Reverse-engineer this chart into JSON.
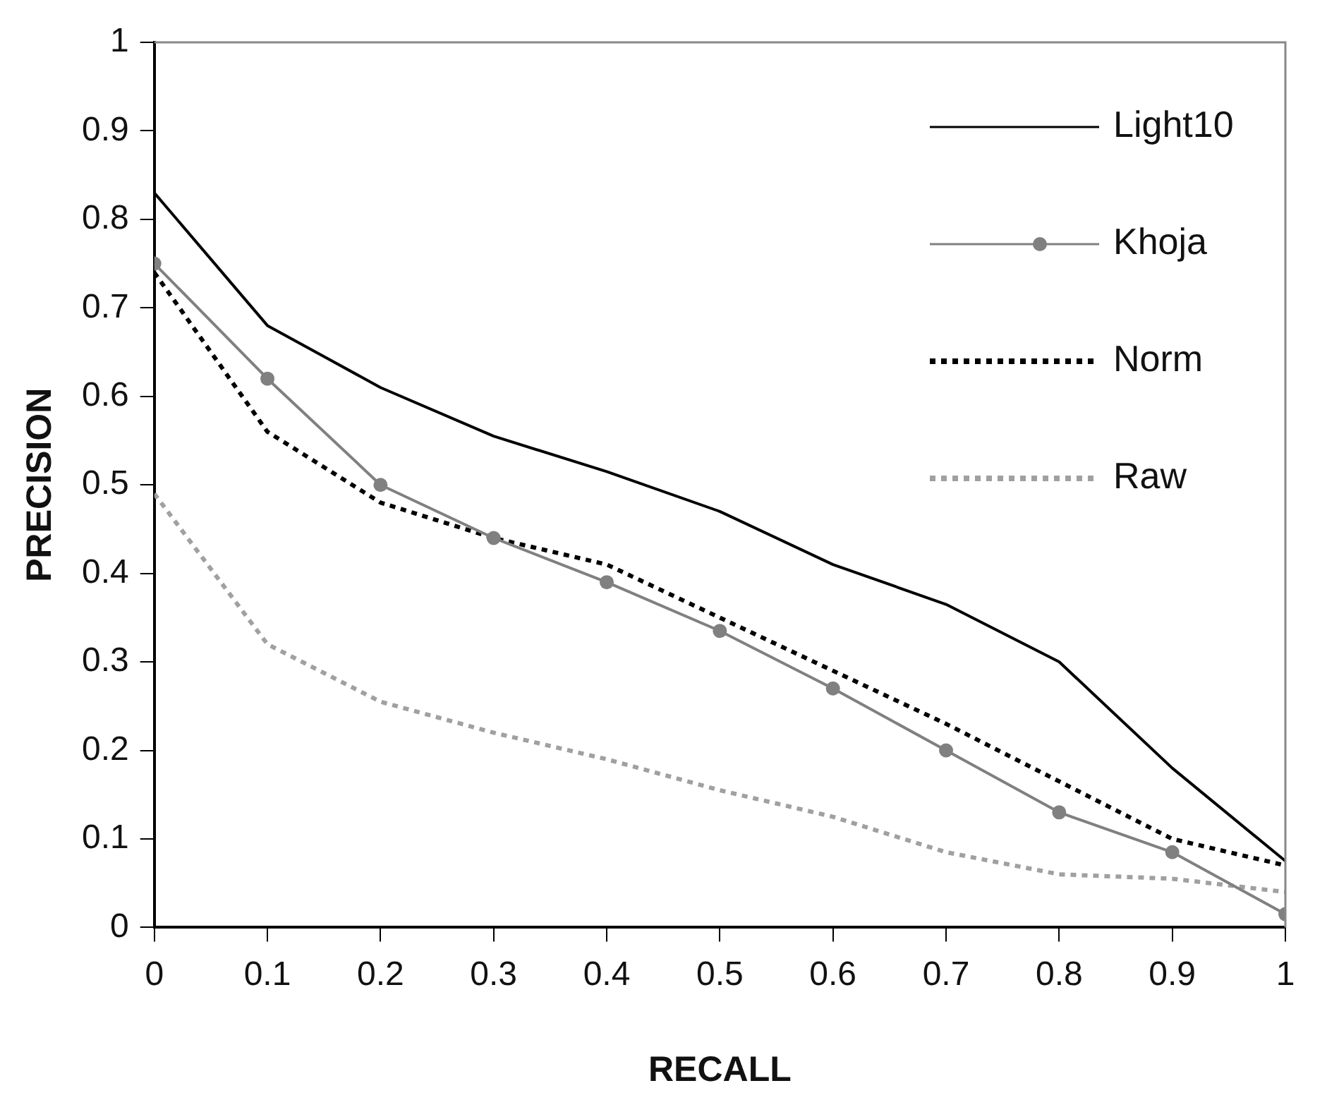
{
  "chart_data": {
    "type": "line",
    "xlabel": "RECALL",
    "ylabel": "PRECISION",
    "x": [
      0,
      0.1,
      0.2,
      0.3,
      0.4,
      0.5,
      0.6,
      0.7,
      0.8,
      0.9,
      1
    ],
    "xlim": [
      0,
      1
    ],
    "xticks": [
      0,
      0.1,
      0.2,
      0.3,
      0.4,
      0.5,
      0.6,
      0.7,
      0.8,
      0.9,
      1
    ],
    "ylim": [
      0,
      1
    ],
    "yticks": [
      0,
      0.1,
      0.2,
      0.3,
      0.4,
      0.5,
      0.6,
      0.7,
      0.8,
      0.9,
      1
    ],
    "grid": false,
    "legend": "top right",
    "series": [
      {
        "name": "Light10",
        "color": "#000000",
        "line_style": "solid",
        "marker": "none",
        "values": [
          0.83,
          0.68,
          0.61,
          0.555,
          0.515,
          0.47,
          0.41,
          0.365,
          0.3,
          0.18,
          0.075
        ]
      },
      {
        "name": "Khoja",
        "color": "#808080",
        "line_style": "solid",
        "marker": "circle",
        "values": [
          0.75,
          0.62,
          0.5,
          0.44,
          0.39,
          0.335,
          0.27,
          0.2,
          0.13,
          0.085,
          0.015
        ]
      },
      {
        "name": "Norm",
        "color": "#000000",
        "line_style": "dotted",
        "marker": "none",
        "values": [
          0.74,
          0.56,
          0.48,
          0.44,
          0.41,
          0.35,
          0.29,
          0.23,
          0.165,
          0.1,
          0.07
        ]
      },
      {
        "name": "Raw",
        "color": "#a0a0a0",
        "line_style": "dotted",
        "marker": "none",
        "values": [
          0.49,
          0.32,
          0.255,
          0.22,
          0.19,
          0.155,
          0.125,
          0.085,
          0.06,
          0.055,
          0.04
        ]
      }
    ]
  }
}
